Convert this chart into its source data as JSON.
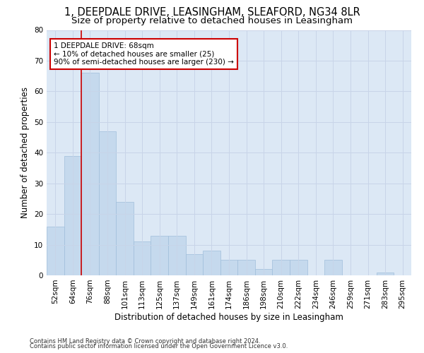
{
  "title_line1": "1, DEEPDALE DRIVE, LEASINGHAM, SLEAFORD, NG34 8LR",
  "title_line2": "Size of property relative to detached houses in Leasingham",
  "xlabel": "Distribution of detached houses by size in Leasingham",
  "ylabel": "Number of detached properties",
  "categories": [
    "52sqm",
    "64sqm",
    "76sqm",
    "88sqm",
    "101sqm",
    "113sqm",
    "125sqm",
    "137sqm",
    "149sqm",
    "161sqm",
    "174sqm",
    "186sqm",
    "198sqm",
    "210sqm",
    "222sqm",
    "234sqm",
    "246sqm",
    "259sqm",
    "271sqm",
    "283sqm",
    "295sqm"
  ],
  "values": [
    16,
    39,
    66,
    47,
    24,
    11,
    13,
    13,
    7,
    8,
    5,
    5,
    2,
    5,
    5,
    0,
    5,
    0,
    0,
    1,
    0
  ],
  "bar_color": "#c5d9ed",
  "bar_edge_color": "#a0bedb",
  "red_line_index": 1,
  "annotation_title": "1 DEEPDALE DRIVE: 68sqm",
  "annotation_line2": "← 10% of detached houses are smaller (25)",
  "annotation_line3": "90% of semi-detached houses are larger (230) →",
  "annotation_box_color": "#ffffff",
  "annotation_edge_color": "#cc0000",
  "red_line_color": "#cc0000",
  "ylim": [
    0,
    80
  ],
  "yticks": [
    0,
    10,
    20,
    30,
    40,
    50,
    60,
    70,
    80
  ],
  "grid_color": "#c8d4e8",
  "background_color": "#dce8f5",
  "footer_line1": "Contains HM Land Registry data © Crown copyright and database right 2024.",
  "footer_line2": "Contains public sector information licensed under the Open Government Licence v3.0.",
  "title_fontsize": 10.5,
  "subtitle_fontsize": 9.5,
  "axis_label_fontsize": 8.5,
  "tick_fontsize": 7.5,
  "annotation_fontsize": 7.5,
  "footer_fontsize": 6
}
